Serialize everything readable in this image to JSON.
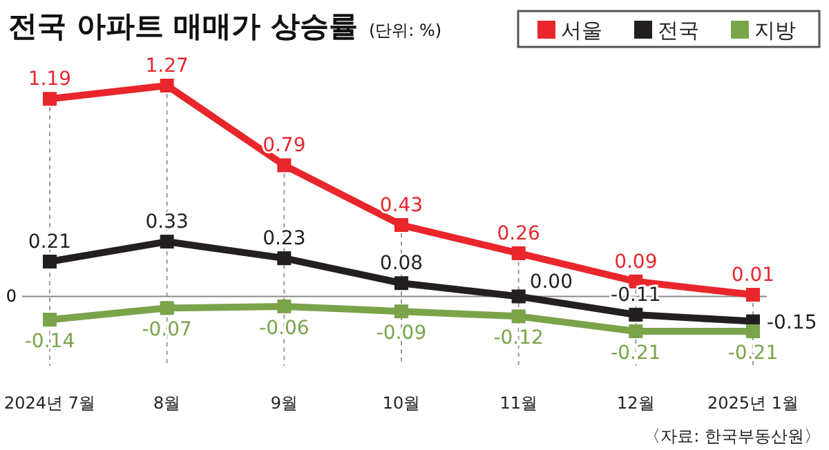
{
  "chart_data": {
    "type": "line",
    "title": "전국 아파트 매매가 상승률",
    "subtitle": "(단위: %)",
    "categories": [
      "2024년 7월",
      "8월",
      "9월",
      "10월",
      "11월",
      "12월",
      "2025년 1월"
    ],
    "series": [
      {
        "name": "서울",
        "color": "#e8262b",
        "values": [
          1.19,
          1.27,
          0.79,
          0.43,
          0.26,
          0.09,
          0.01
        ],
        "value_labels": [
          "1.19",
          "1.27",
          "0.79",
          "0.43",
          "0.26",
          "0.09",
          "0.01"
        ]
      },
      {
        "name": "전국",
        "color": "#231f20",
        "values": [
          0.21,
          0.33,
          0.23,
          0.08,
          0.0,
          -0.11,
          -0.15
        ],
        "value_labels": [
          "0.21",
          "0.33",
          "0.23",
          "0.08",
          "0.00",
          "-0.11",
          "-0.15"
        ]
      },
      {
        "name": "지방",
        "color": "#7aa34a",
        "values": [
          -0.14,
          -0.07,
          -0.06,
          -0.09,
          -0.12,
          -0.21,
          -0.21
        ],
        "value_labels": [
          "-0.14",
          "-0.07",
          "-0.06",
          "-0.09",
          "-0.12",
          "-0.21",
          "-0.21"
        ]
      }
    ],
    "tick_labels": "x",
    "grid": "x",
    "marker": "square",
    "line_style": "solid",
    "legend": "top right",
    "ref_lines": [
      {
        "axis": "y",
        "value": 0,
        "label": "0",
        "color": "#888888"
      }
    ],
    "annotations": [
      "〈자료: 한국부동산원〉"
    ]
  }
}
